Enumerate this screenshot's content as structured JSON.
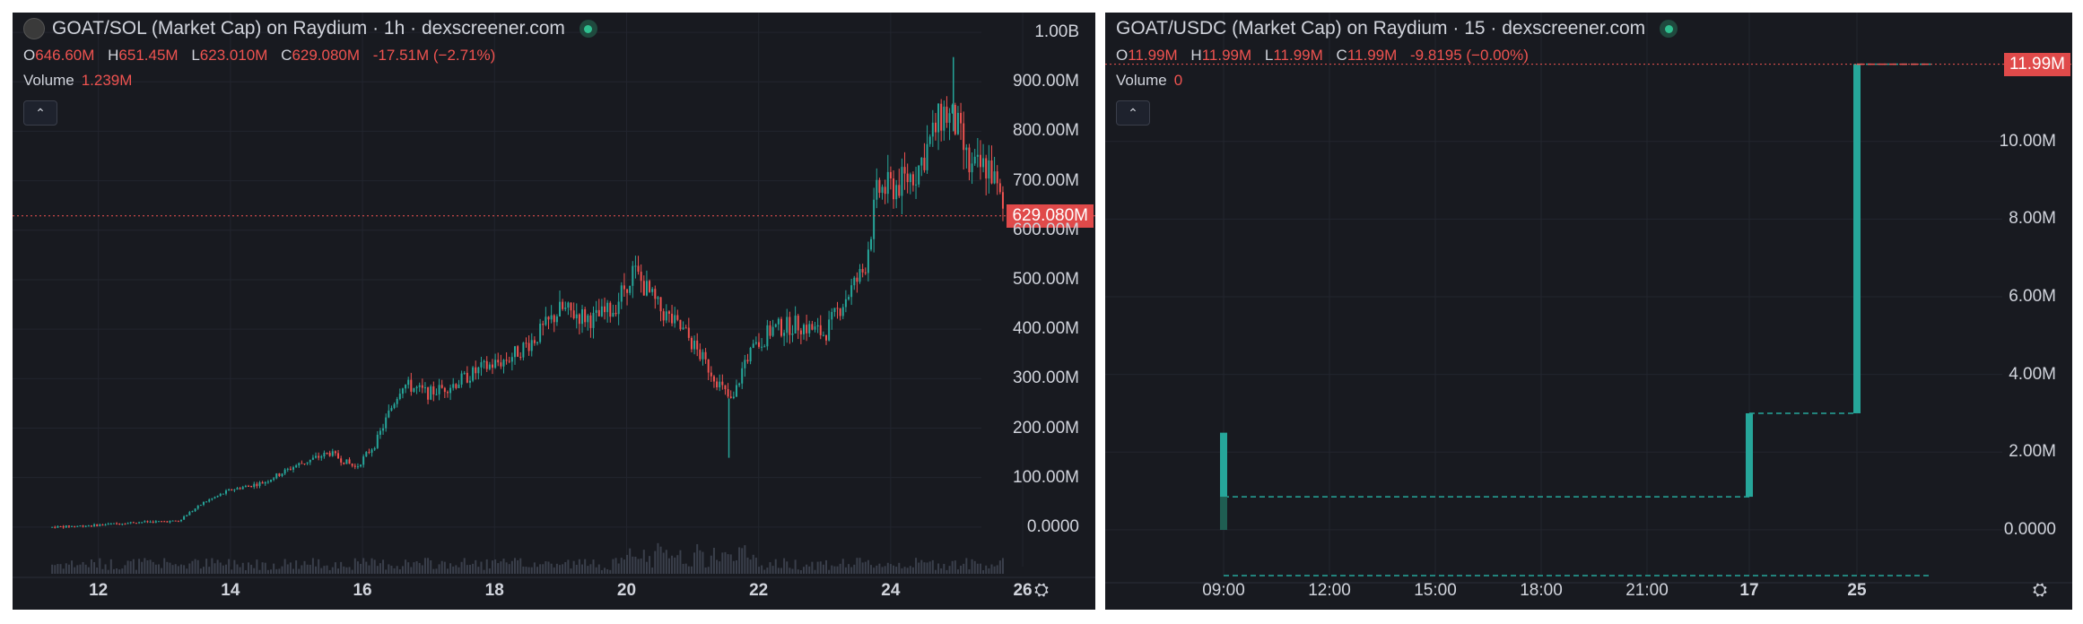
{
  "colors": {
    "up": "#26a69a",
    "down": "#ef5350",
    "bg": "#181a20",
    "text": "#d1d4dc",
    "price_tag": "#e04a4a",
    "volume": "#3a3f4b"
  },
  "left": {
    "title": "GOAT/SOL (Market Cap) on Raydium · 1h · dexscreener.com",
    "ohlc": {
      "o_label": "O",
      "o": "646.60M",
      "h_label": "H",
      "h": "651.45M",
      "l_label": "L",
      "l": "623.010M",
      "c_label": "C",
      "c": "629.080M",
      "change": "-17.51M (−2.71%)"
    },
    "volume_label": "Volume",
    "volume_value": "1.239M",
    "price_tag": "629.080M",
    "icons": {
      "logo": "goat-token-logo",
      "status": "live-status-dot",
      "collapse": "chevron-up-icon",
      "settings": "gear-icon"
    }
  },
  "right": {
    "title": "GOAT/USDC (Market Cap) on Raydium · 15 · dexscreener.com",
    "ohlc": {
      "o_label": "O",
      "o": "11.99M",
      "h_label": "H",
      "h": "11.99M",
      "l_label": "L",
      "l": "11.99M",
      "c_label": "C",
      "c": "11.99M",
      "change": "-9.8195 (−0.00%)"
    },
    "volume_label": "Volume",
    "volume_value": "0",
    "price_tag": "11.99M",
    "icons": {
      "status": "live-status-dot",
      "collapse": "chevron-up-icon",
      "settings": "gear-icon"
    }
  },
  "chart_data": [
    {
      "type": "candlestick",
      "title": "GOAT/SOL (Market Cap) on Raydium · 1h · dexscreener.com",
      "y_ticks": [
        "1.00B",
        "900.00M",
        "800.00M",
        "700.00M",
        "600.00M",
        "500.00M",
        "400.00M",
        "300.00M",
        "200.00M",
        "100.00M",
        "0.0000"
      ],
      "y_tick_values": [
        1000,
        900,
        800,
        700,
        600,
        500,
        400,
        300,
        200,
        100,
        0
      ],
      "ylim": [
        -80,
        1040
      ],
      "y_unit": "M",
      "x_ticks": [
        "12",
        "14",
        "16",
        "18",
        "20",
        "22",
        "24",
        "26"
      ],
      "x_tick_values": [
        12,
        14,
        16,
        18,
        20,
        22,
        24,
        26
      ],
      "xlim": [
        10.7,
        27.1
      ],
      "last_price": 629.08,
      "trend_points": [
        [
          11.3,
          0
        ],
        [
          12.0,
          4
        ],
        [
          12.6,
          10
        ],
        [
          13.2,
          12
        ],
        [
          13.6,
          50
        ],
        [
          14.0,
          75
        ],
        [
          14.5,
          90
        ],
        [
          15.0,
          125
        ],
        [
          15.5,
          150
        ],
        [
          15.9,
          120
        ],
        [
          16.2,
          170
        ],
        [
          16.6,
          290
        ],
        [
          17.0,
          270
        ],
        [
          17.4,
          290
        ],
        [
          17.8,
          320
        ],
        [
          18.2,
          340
        ],
        [
          18.6,
          380
        ],
        [
          19.0,
          440
        ],
        [
          19.5,
          420
        ],
        [
          19.8,
          440
        ],
        [
          20.1,
          520
        ],
        [
          20.5,
          440
        ],
        [
          20.9,
          390
        ],
        [
          21.2,
          330
        ],
        [
          21.5,
          270
        ],
        [
          21.6,
          250
        ],
        [
          21.8,
          340
        ],
        [
          22.2,
          400
        ],
        [
          22.6,
          410
        ],
        [
          23.0,
          390
        ],
        [
          23.3,
          460
        ],
        [
          23.6,
          520
        ],
        [
          23.8,
          680
        ],
        [
          24.1,
          690
        ],
        [
          24.4,
          720
        ],
        [
          24.6,
          780
        ],
        [
          24.8,
          840
        ],
        [
          25.0,
          810
        ],
        [
          25.2,
          720
        ],
        [
          25.5,
          730
        ],
        [
          25.7,
          640
        ]
      ],
      "volume_label": "Volume"
    },
    {
      "type": "candlestick",
      "title": "GOAT/USDC (Market Cap) on Raydium · 15 · dexscreener.com",
      "y_ticks": [
        "10.00M",
        "8.00M",
        "6.00M",
        "4.00M",
        "2.00M",
        "0.0000"
      ],
      "y_tick_values": [
        10,
        8,
        6,
        4,
        2,
        0
      ],
      "ylim": [
        -1.18,
        13.32
      ],
      "y_unit": "M",
      "x_ticks": [
        "09:00",
        "12:00",
        "15:00",
        "18:00",
        "21:00",
        "17",
        "25"
      ],
      "x_tick_values": [
        0,
        1,
        2,
        3,
        4,
        5,
        6
      ],
      "bold_x_ticks": [
        "17",
        "25"
      ],
      "steps": [
        {
          "x": 0.0,
          "open": 0,
          "close": 2.5,
          "flat_to": 0.0
        },
        {
          "x": 0.0,
          "open": 0.85,
          "close": 0.85,
          "flat_to": 5.0
        },
        {
          "x": 5.0,
          "open": 0.85,
          "close": 3.0,
          "flat_to": 6.0
        },
        {
          "x": 6.0,
          "open": 3.0,
          "close": 11.99,
          "flat_to": 6.7
        }
      ],
      "last_price": 11.99,
      "volume_label": "Volume"
    }
  ]
}
